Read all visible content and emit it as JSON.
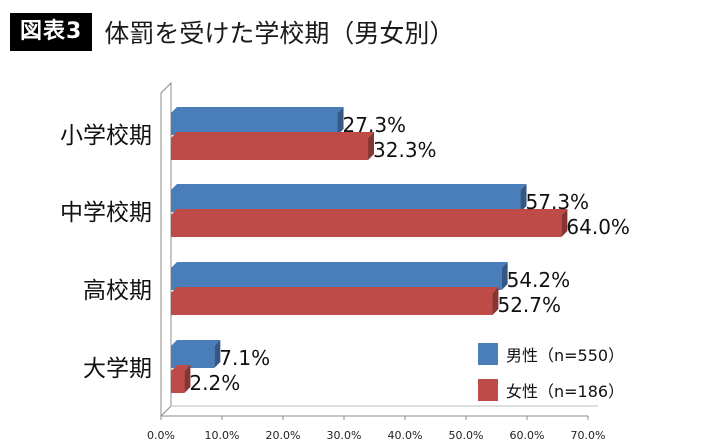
{
  "header": {
    "badge": "図表3",
    "title": "体罰を受けた学校期（男女別）"
  },
  "chart_data": {
    "type": "bar",
    "orientation": "horizontal",
    "three_d": true,
    "categories": [
      "小学校期",
      "中学校期",
      "高校期",
      "大学期"
    ],
    "series": [
      {
        "name": "男性（n=550）",
        "color": "#4a7ebb",
        "values": [
          27.3,
          57.3,
          54.2,
          7.1
        ]
      },
      {
        "name": "女性（n=186）",
        "color": "#be4b48",
        "values": [
          32.3,
          64.0,
          52.7,
          2.2
        ]
      }
    ],
    "value_labels": [
      [
        "27.3%",
        "57.3%",
        "54.2%",
        "7.1%"
      ],
      [
        "32.3%",
        "64.0%",
        "52.7%",
        "2.2%"
      ]
    ],
    "x_ticks": [
      "0.0%",
      "10.0%",
      "20.0%",
      "30.0%",
      "40.0%",
      "50.0%",
      "60.0%",
      "70.0%"
    ],
    "xlim": [
      0,
      70
    ],
    "grid": false,
    "legend_position": "bottom-right"
  }
}
